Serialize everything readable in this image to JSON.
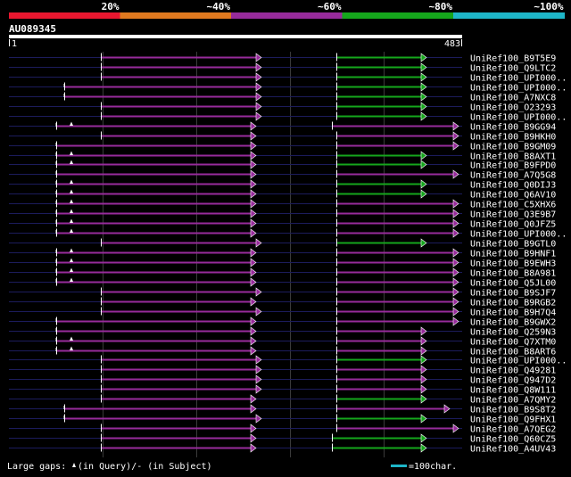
{
  "scale_bar": {
    "labels": [
      "20%",
      "~40%",
      "~60%",
      "~80%",
      "~100%"
    ],
    "colors": [
      "#e8172f",
      "#e0791f",
      "#972b9b",
      "#15a61c",
      "#1eb6c8"
    ]
  },
  "query": {
    "id": "AU089345",
    "start": "1",
    "end": "483"
  },
  "colors": {
    "pink": "#972b9b",
    "green": "#15a61c",
    "gap_marker": "#ffffff",
    "grid": "#3a3a3a",
    "hline": "#1c1c5c"
  },
  "hits": [
    {
      "label": "UniRef100_B9T5E9",
      "segs": [
        {
          "color": "pink",
          "from": 113,
          "to": 293
        },
        {
          "color": "green",
          "from": 377,
          "to": 478
        }
      ],
      "tick": false,
      "mark": false
    },
    {
      "label": "UniRef100_Q9LTC2",
      "segs": [
        {
          "color": "pink",
          "from": 113,
          "to": 293
        },
        {
          "color": "green",
          "from": 377,
          "to": 478
        }
      ],
      "tick": false,
      "mark": false
    },
    {
      "label": "UniRef100_UPI000..",
      "segs": [
        {
          "color": "pink",
          "from": 113,
          "to": 293
        },
        {
          "color": "green",
          "from": 377,
          "to": 478
        }
      ],
      "tick": false,
      "mark": false
    },
    {
      "label": "UniRef100_UPI000..",
      "segs": [
        {
          "color": "pink",
          "from": 72,
          "to": 293
        },
        {
          "color": "green",
          "from": 377,
          "to": 478
        }
      ],
      "tick": true,
      "mark": false
    },
    {
      "label": "UniRef100_A7NXC8",
      "segs": [
        {
          "color": "pink",
          "from": 72,
          "to": 293
        },
        {
          "color": "green",
          "from": 377,
          "to": 478
        }
      ],
      "tick": true,
      "mark": false
    },
    {
      "label": "UniRef100_O23293",
      "segs": [
        {
          "color": "pink",
          "from": 113,
          "to": 293
        },
        {
          "color": "green",
          "from": 377,
          "to": 478
        }
      ],
      "tick": false,
      "mark": false
    },
    {
      "label": "UniRef100_UPI000..",
      "segs": [
        {
          "color": "pink",
          "from": 113,
          "to": 293
        },
        {
          "color": "green",
          "from": 377,
          "to": 478
        }
      ],
      "tick": false,
      "mark": false
    },
    {
      "label": "UniRef100_B9GG94",
      "segs": [
        {
          "color": "pink",
          "from": 63,
          "to": 287
        },
        {
          "color": "pink",
          "from": 372,
          "to": 514
        }
      ],
      "tick": true,
      "mark": true
    },
    {
      "label": "UniRef100_B9HKH0",
      "segs": [
        {
          "color": "pink",
          "from": 113,
          "to": 287
        },
        {
          "color": "pink",
          "from": 377,
          "to": 514
        }
      ],
      "tick": false,
      "mark": false
    },
    {
      "label": "UniRef100_B9GM09",
      "segs": [
        {
          "color": "pink",
          "from": 63,
          "to": 287
        },
        {
          "color": "pink",
          "from": 377,
          "to": 514
        }
      ],
      "tick": true,
      "mark": false
    },
    {
      "label": "UniRef100_B8AXT1",
      "segs": [
        {
          "color": "pink",
          "from": 63,
          "to": 287
        },
        {
          "color": "green",
          "from": 377,
          "to": 478
        }
      ],
      "tick": true,
      "mark": true
    },
    {
      "label": "UniRef100_B9FPD0",
      "segs": [
        {
          "color": "pink",
          "from": 63,
          "to": 287
        },
        {
          "color": "green",
          "from": 377,
          "to": 478
        }
      ],
      "tick": true,
      "mark": true
    },
    {
      "label": "UniRef100_A7Q5G8",
      "segs": [
        {
          "color": "pink",
          "from": 63,
          "to": 287
        },
        {
          "color": "pink",
          "from": 377,
          "to": 514
        }
      ],
      "tick": true,
      "mark": false
    },
    {
      "label": "UniRef100_Q0DIJ3",
      "segs": [
        {
          "color": "pink",
          "from": 63,
          "to": 287
        },
        {
          "color": "green",
          "from": 377,
          "to": 478
        }
      ],
      "tick": true,
      "mark": true
    },
    {
      "label": "UniRef100_Q6AV10",
      "segs": [
        {
          "color": "pink",
          "from": 63,
          "to": 287
        },
        {
          "color": "green",
          "from": 377,
          "to": 478
        }
      ],
      "tick": true,
      "mark": true
    },
    {
      "label": "UniRef100_C5XHX6",
      "segs": [
        {
          "color": "pink",
          "from": 63,
          "to": 287
        },
        {
          "color": "pink",
          "from": 377,
          "to": 514
        }
      ],
      "tick": true,
      "mark": true
    },
    {
      "label": "UniRef100_Q3E9B7",
      "segs": [
        {
          "color": "pink",
          "from": 63,
          "to": 287
        },
        {
          "color": "pink",
          "from": 377,
          "to": 514
        }
      ],
      "tick": true,
      "mark": true
    },
    {
      "label": "UniRef100_Q0JFZ5",
      "segs": [
        {
          "color": "pink",
          "from": 63,
          "to": 287
        },
        {
          "color": "pink",
          "from": 377,
          "to": 514
        }
      ],
      "tick": true,
      "mark": true
    },
    {
      "label": "UniRef100_UPI000..",
      "segs": [
        {
          "color": "pink",
          "from": 63,
          "to": 287
        },
        {
          "color": "pink",
          "from": 377,
          "to": 514
        }
      ],
      "tick": true,
      "mark": true
    },
    {
      "label": "UniRef100_B9GTL0",
      "segs": [
        {
          "color": "pink",
          "from": 113,
          "to": 293
        },
        {
          "color": "green",
          "from": 377,
          "to": 478
        }
      ],
      "tick": false,
      "mark": false
    },
    {
      "label": "UniRef100_B9HNF1",
      "segs": [
        {
          "color": "pink",
          "from": 63,
          "to": 287
        },
        {
          "color": "pink",
          "from": 377,
          "to": 514
        }
      ],
      "tick": true,
      "mark": true
    },
    {
      "label": "UniRef100_B9EWH3",
      "segs": [
        {
          "color": "pink",
          "from": 63,
          "to": 287
        },
        {
          "color": "pink",
          "from": 377,
          "to": 514
        }
      ],
      "tick": true,
      "mark": true
    },
    {
      "label": "UniRef100_B8A981",
      "segs": [
        {
          "color": "pink",
          "from": 63,
          "to": 287
        },
        {
          "color": "pink",
          "from": 377,
          "to": 514
        }
      ],
      "tick": true,
      "mark": true
    },
    {
      "label": "UniRef100_Q5JL00",
      "segs": [
        {
          "color": "pink",
          "from": 63,
          "to": 287
        },
        {
          "color": "pink",
          "from": 377,
          "to": 514
        }
      ],
      "tick": true,
      "mark": true
    },
    {
      "label": "UniRef100_B9SJF7",
      "segs": [
        {
          "color": "pink",
          "from": 113,
          "to": 293
        },
        {
          "color": "pink",
          "from": 377,
          "to": 514
        }
      ],
      "tick": false,
      "mark": false
    },
    {
      "label": "UniRef100_B9RGB2",
      "segs": [
        {
          "color": "pink",
          "from": 113,
          "to": 287
        },
        {
          "color": "pink",
          "from": 377,
          "to": 514
        }
      ],
      "tick": false,
      "mark": false
    },
    {
      "label": "UniRef100_B9H7Q4",
      "segs": [
        {
          "color": "pink",
          "from": 113,
          "to": 293
        },
        {
          "color": "pink",
          "from": 377,
          "to": 514
        }
      ],
      "tick": false,
      "mark": false
    },
    {
      "label": "UniRef100_B9GWX2",
      "segs": [
        {
          "color": "pink",
          "from": 63,
          "to": 287
        },
        {
          "color": "pink",
          "from": 377,
          "to": 514
        }
      ],
      "tick": true,
      "mark": false
    },
    {
      "label": "UniRef100_Q259N3",
      "segs": [
        {
          "color": "pink",
          "from": 63,
          "to": 287
        },
        {
          "color": "pink",
          "from": 377,
          "to": 478
        }
      ],
      "tick": true,
      "mark": false
    },
    {
      "label": "UniRef100_Q7XTM0",
      "segs": [
        {
          "color": "pink",
          "from": 63,
          "to": 287
        },
        {
          "color": "pink",
          "from": 377,
          "to": 478
        }
      ],
      "tick": true,
      "mark": true
    },
    {
      "label": "UniRef100_B8ART6",
      "segs": [
        {
          "color": "pink",
          "from": 63,
          "to": 287
        },
        {
          "color": "pink",
          "from": 377,
          "to": 478
        }
      ],
      "tick": true,
      "mark": true
    },
    {
      "label": "UniRef100_UPI000..",
      "segs": [
        {
          "color": "pink",
          "from": 113,
          "to": 293
        },
        {
          "color": "green",
          "from": 377,
          "to": 478
        }
      ],
      "tick": false,
      "mark": false
    },
    {
      "label": "UniRef100_Q49281",
      "segs": [
        {
          "color": "pink",
          "from": 113,
          "to": 293
        },
        {
          "color": "pink",
          "from": 377,
          "to": 478
        }
      ],
      "tick": false,
      "mark": false
    },
    {
      "label": "UniRef100_Q947D2",
      "segs": [
        {
          "color": "pink",
          "from": 113,
          "to": 293
        },
        {
          "color": "pink",
          "from": 377,
          "to": 478
        }
      ],
      "tick": false,
      "mark": false
    },
    {
      "label": "UniRef100_Q8W111",
      "segs": [
        {
          "color": "pink",
          "from": 113,
          "to": 293
        },
        {
          "color": "pink",
          "from": 377,
          "to": 478
        }
      ],
      "tick": false,
      "mark": false
    },
    {
      "label": "UniRef100_A7QMY2",
      "segs": [
        {
          "color": "pink",
          "from": 113,
          "to": 287
        },
        {
          "color": "green",
          "from": 377,
          "to": 478
        }
      ],
      "tick": false,
      "mark": false
    },
    {
      "label": "UniRef100_B9S8T2",
      "segs": [
        {
          "color": "pink",
          "from": 72,
          "to": 287
        },
        {
          "color": "pink",
          "from": 377,
          "to": 504
        }
      ],
      "tick": true,
      "mark": false
    },
    {
      "label": "UniRef100_Q9FHX1",
      "segs": [
        {
          "color": "pink",
          "from": 72,
          "to": 293
        },
        {
          "color": "green",
          "from": 377,
          "to": 478
        }
      ],
      "tick": true,
      "mark": false
    },
    {
      "label": "UniRef100_A7QEG2",
      "segs": [
        {
          "color": "pink",
          "from": 113,
          "to": 287
        },
        {
          "color": "pink",
          "from": 377,
          "to": 514
        }
      ],
      "tick": false,
      "mark": false
    },
    {
      "label": "UniRef100_Q60CZ5",
      "segs": [
        {
          "color": "pink",
          "from": 113,
          "to": 287
        },
        {
          "color": "green",
          "from": 372,
          "to": 478
        }
      ],
      "tick": false,
      "mark": false
    },
    {
      "label": "UniRef100_A4UV43",
      "segs": [
        {
          "color": "pink",
          "from": 113,
          "to": 287
        },
        {
          "color": "green",
          "from": 372,
          "to": 478
        }
      ],
      "tick": false,
      "mark": false
    }
  ],
  "legend": {
    "gaps_prefix": "Large gaps: ",
    "query_text": "(in Query)/- (in Subject)",
    "scale_text": "=100char."
  }
}
